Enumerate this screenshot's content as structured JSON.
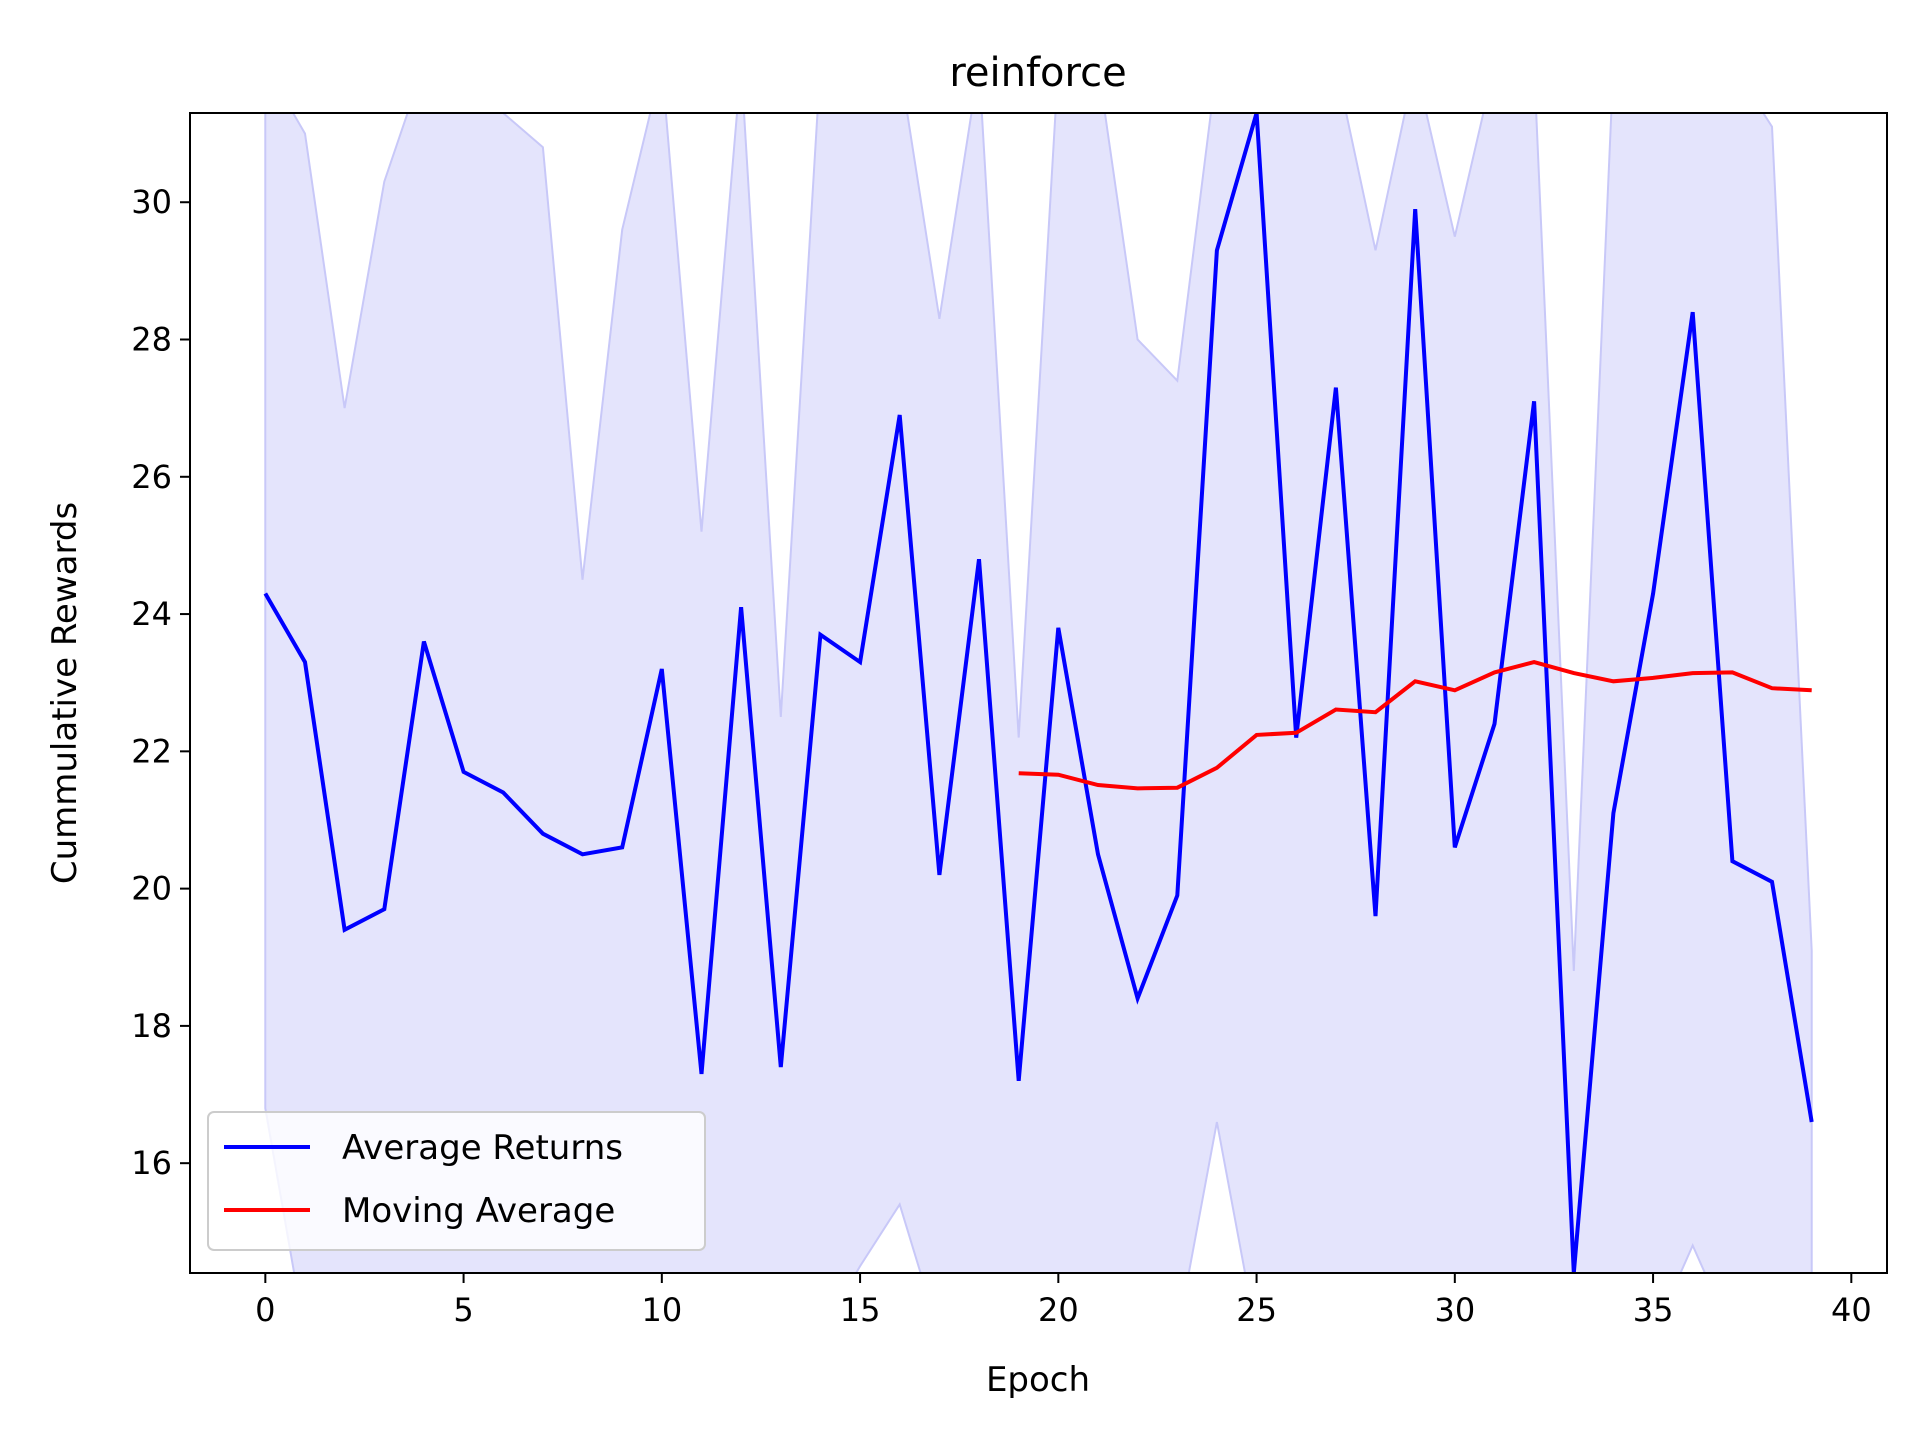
{
  "chart_data": {
    "type": "line",
    "title": "reinforce",
    "xlabel": "Epoch",
    "ylabel": "Cummulative Rewards",
    "xlim": [
      -1.9,
      40.9
    ],
    "ylim": [
      14.4,
      31.3
    ],
    "xticks": [
      0,
      5,
      10,
      15,
      20,
      25,
      30,
      35,
      40
    ],
    "yticks": [
      16,
      18,
      20,
      22,
      24,
      26,
      28,
      30
    ],
    "grid": false,
    "legend_position": "lower-left",
    "series": [
      {
        "name": "Average Returns",
        "color": "#0000ff",
        "x": [
          0,
          1,
          2,
          3,
          4,
          5,
          6,
          7,
          8,
          9,
          10,
          11,
          12,
          13,
          14,
          15,
          16,
          17,
          18,
          19,
          20,
          21,
          22,
          23,
          24,
          25,
          26,
          27,
          28,
          29,
          30,
          31,
          32,
          33,
          34,
          35,
          36,
          37,
          38,
          39
        ],
        "y": [
          24.3,
          23.3,
          19.4,
          19.7,
          23.6,
          21.7,
          21.4,
          20.8,
          20.5,
          20.6,
          23.2,
          17.3,
          24.1,
          17.4,
          23.7,
          23.3,
          26.9,
          20.2,
          24.8,
          17.2,
          23.8,
          20.5,
          18.4,
          19.9,
          29.3,
          31.3,
          22.2,
          27.3,
          19.6,
          29.9,
          20.6,
          22.4,
          27.1,
          14.4,
          21.1,
          24.3,
          28.4,
          20.4,
          20.1,
          16.6
        ]
      },
      {
        "name": "Moving Average",
        "color": "#ff0000",
        "x": [
          19,
          20,
          21,
          22,
          23,
          24,
          25,
          26,
          27,
          28,
          29,
          30,
          31,
          32,
          33,
          34,
          35,
          36,
          37,
          38,
          39
        ],
        "y": [
          21.68,
          21.66,
          21.51,
          21.46,
          21.47,
          21.76,
          22.24,
          22.27,
          22.61,
          22.57,
          23.02,
          22.89,
          23.15,
          23.3,
          23.14,
          23.02,
          23.07,
          23.14,
          23.15,
          22.92,
          22.89
        ]
      }
    ],
    "band": {
      "color": "#e4e4fc",
      "edge_color": "#c8c8f8",
      "x": [
        0,
        1,
        2,
        3,
        4,
        5,
        6,
        7,
        8,
        9,
        10,
        11,
        12,
        13,
        14,
        15,
        16,
        17,
        18,
        19,
        20,
        21,
        22,
        23,
        24,
        25,
        26,
        27,
        28,
        29,
        30,
        31,
        32,
        33,
        34,
        35,
        36,
        37,
        38,
        39
      ],
      "upper": [
        32.0,
        31.0,
        27.0,
        30.3,
        32.0,
        32.0,
        31.3,
        30.8,
        24.5,
        29.6,
        32.0,
        25.2,
        32.0,
        22.5,
        32.0,
        32.0,
        32.0,
        28.3,
        32.0,
        22.2,
        32.0,
        32.0,
        28.0,
        27.4,
        32.0,
        32.0,
        32.0,
        32.0,
        29.3,
        32.0,
        29.5,
        32.0,
        32.0,
        18.8,
        32.0,
        32.0,
        32.0,
        32.0,
        31.1,
        19.1
      ],
      "lower": [
        16.8,
        13.5,
        13.5,
        13.5,
        13.5,
        13.5,
        13.5,
        13.5,
        13.5,
        13.5,
        13.5,
        13.5,
        13.5,
        13.5,
        13.5,
        14.5,
        15.4,
        13.5,
        13.5,
        13.5,
        13.5,
        13.5,
        13.5,
        13.5,
        16.6,
        13.5,
        13.5,
        13.5,
        13.5,
        13.5,
        13.5,
        13.5,
        13.5,
        13.5,
        13.5,
        13.5,
        14.8,
        13.5,
        13.5,
        13.5
      ]
    }
  }
}
